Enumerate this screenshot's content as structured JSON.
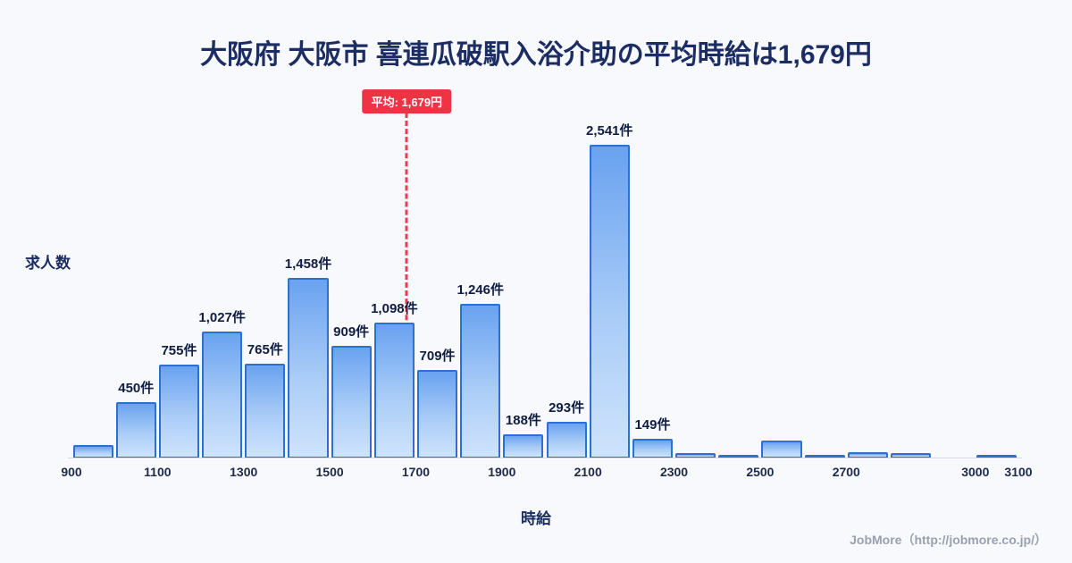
{
  "footer": "JobMore（http://jobmore.co.jp/）",
  "colors": {
    "background": "#f7f9fd",
    "title_text": "#1c2d63",
    "bar_border": "#2e6fd6",
    "bar_fill_top": "#69a2f0",
    "bar_fill_bottom": "#cfe3fc",
    "average_red": "#ee3b47",
    "tick_text": "#1d2a4a",
    "footer_text": "#99a1b0"
  },
  "chart_data": {
    "type": "bar",
    "title": "大阪府 大阪市 喜連瓜破駅入浴介助の平均時給は1,679円",
    "xlabel": "時給",
    "ylabel": "求人数",
    "average": 1679,
    "average_label": "平均: 1,679円",
    "bin_width": 100,
    "x_start": 900,
    "x_end": 3100,
    "ylim": [
      0,
      2700
    ],
    "grid": false,
    "legend": false,
    "x_ticks": [
      900,
      1100,
      1300,
      1500,
      1700,
      1900,
      2100,
      2300,
      2500,
      2700,
      3000,
      3100
    ],
    "bars": [
      {
        "x": 900,
        "value": 100,
        "label": ""
      },
      {
        "x": 1000,
        "value": 450,
        "label": "450件"
      },
      {
        "x": 1100,
        "value": 755,
        "label": "755件"
      },
      {
        "x": 1200,
        "value": 1027,
        "label": "1,027件"
      },
      {
        "x": 1300,
        "value": 765,
        "label": "765件"
      },
      {
        "x": 1400,
        "value": 1458,
        "label": "1,458件"
      },
      {
        "x": 1500,
        "value": 909,
        "label": "909件"
      },
      {
        "x": 1600,
        "value": 1098,
        "label": "1,098件"
      },
      {
        "x": 1700,
        "value": 709,
        "label": "709件"
      },
      {
        "x": 1800,
        "value": 1246,
        "label": "1,246件"
      },
      {
        "x": 1900,
        "value": 188,
        "label": "188件"
      },
      {
        "x": 2000,
        "value": 293,
        "label": "293件"
      },
      {
        "x": 2100,
        "value": 2541,
        "label": "2,541件"
      },
      {
        "x": 2200,
        "value": 149,
        "label": "149件"
      },
      {
        "x": 2300,
        "value": 35,
        "label": ""
      },
      {
        "x": 2400,
        "value": 20,
        "label": ""
      },
      {
        "x": 2500,
        "value": 140,
        "label": ""
      },
      {
        "x": 2600,
        "value": 25,
        "label": ""
      },
      {
        "x": 2700,
        "value": 45,
        "label": ""
      },
      {
        "x": 2800,
        "value": 40,
        "label": ""
      },
      {
        "x": 3000,
        "value": 25,
        "label": ""
      }
    ]
  }
}
